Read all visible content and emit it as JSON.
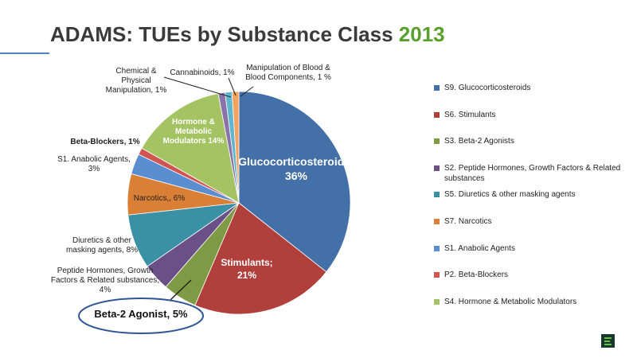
{
  "chart_data": {
    "type": "pie",
    "title": "ADAMS: TUEs by Substance Class",
    "title_highlight": "2013",
    "categories": [
      "S9. Glucocorticosteroids",
      "S6. Stimulants",
      "S3. Beta-2 Agonists",
      "S2. Peptide Hormones, Growth Factors & Related substances",
      "S5. Diuretics & other masking agents",
      "S7. Narcotics",
      "S1. Anabolic Agents",
      "P2. Beta-Blockers",
      "S4. Hormone & Metabolic Modulators",
      null,
      null,
      null
    ],
    "values": [
      36,
      21,
      5,
      4,
      8,
      6,
      3,
      1,
      14,
      1,
      1,
      1
    ],
    "value_labels": [
      "Glucocorticosteroids; 36%",
      "Stimulants; 21%",
      "Beta-2 Agonist, 5%",
      "Peptide Hormones, Growth Factors & Related substances; 4%",
      "Diuretics & other masking agents, 8%",
      "Narcotics,, 6%",
      "S1. Anabolic Agents, 3%",
      "Beta-Blockers,  1%",
      "Hormone & Metabolic Modulators 14%",
      "Chemical & Physical Manipulation, 1%",
      "Cannabinoids, 1%",
      "Manipulation of Blood & Blood Components, 1 %"
    ],
    "colors": [
      "#4470a8",
      "#b13f3c",
      "#7f9a45",
      "#6b5088",
      "#3a90a5",
      "#d97f36",
      "#5a8ed0",
      "#d05450",
      "#a4c463",
      "#8a72aa",
      "#5fb7cf",
      "#f5a25e"
    ],
    "legend": "right"
  }
}
